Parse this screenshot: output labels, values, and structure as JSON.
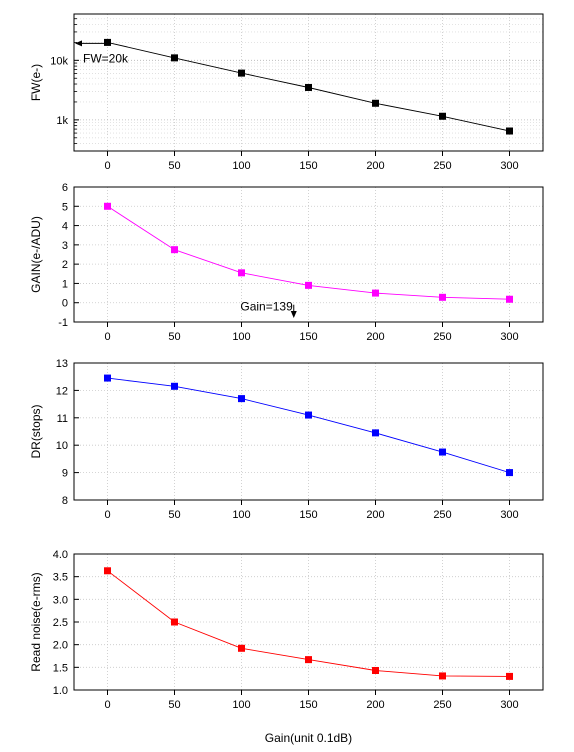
{
  "chart_data": [
    {
      "type": "line",
      "ylabel": "FW(e-)",
      "yscale": "log",
      "ylim": [
        300,
        60000
      ],
      "yticks": [
        {
          "v": 1000,
          "label": "1k"
        },
        {
          "v": 10000,
          "label": "10k"
        }
      ],
      "xlim": [
        -25,
        325
      ],
      "xticks": [
        0,
        50,
        100,
        150,
        200,
        250,
        300
      ],
      "series": [
        {
          "color": "#000000",
          "x": [
            0,
            50,
            100,
            150,
            200,
            250,
            300
          ],
          "y": [
            20000,
            11000,
            6100,
            3500,
            1900,
            1150,
            650
          ]
        }
      ],
      "annotation": {
        "text": "FW=20k",
        "arrow": "left",
        "at_x": 0,
        "at_y": 20000
      },
      "grid": true
    },
    {
      "type": "line",
      "ylabel": "GAIN(e-/ADU)",
      "ylim": [
        -1,
        6
      ],
      "yticks": [
        {
          "v": -1,
          "label": "-1"
        },
        {
          "v": 0,
          "label": "0"
        },
        {
          "v": 1,
          "label": "1"
        },
        {
          "v": 2,
          "label": "2"
        },
        {
          "v": 3,
          "label": "3"
        },
        {
          "v": 4,
          "label": "4"
        },
        {
          "v": 5,
          "label": "5"
        },
        {
          "v": 6,
          "label": "6"
        }
      ],
      "xlim": [
        -25,
        325
      ],
      "xticks": [
        0,
        50,
        100,
        150,
        200,
        250,
        300
      ],
      "series": [
        {
          "color": "#ff00ff",
          "x": [
            0,
            50,
            100,
            150,
            200,
            250,
            300
          ],
          "y": [
            5.0,
            2.75,
            1.55,
            0.9,
            0.5,
            0.28,
            0.18
          ]
        }
      ],
      "annotation": {
        "text": "Gain=139",
        "arrow": "down",
        "at_x": 139
      },
      "grid": true
    },
    {
      "type": "line",
      "ylabel": "DR(stops)",
      "ylim": [
        8,
        13
      ],
      "yticks": [
        {
          "v": 8,
          "label": "8"
        },
        {
          "v": 9,
          "label": "9"
        },
        {
          "v": 10,
          "label": "10"
        },
        {
          "v": 11,
          "label": "11"
        },
        {
          "v": 12,
          "label": "12"
        },
        {
          "v": 13,
          "label": "13"
        }
      ],
      "xlim": [
        -25,
        325
      ],
      "xticks": [
        0,
        50,
        100,
        150,
        200,
        250,
        300
      ],
      "series": [
        {
          "color": "#0000ff",
          "x": [
            0,
            50,
            100,
            150,
            200,
            250,
            300
          ],
          "y": [
            12.45,
            12.15,
            11.7,
            11.1,
            10.45,
            9.75,
            9.0
          ]
        }
      ],
      "grid": true
    },
    {
      "type": "line",
      "ylabel": "Read noise(e-rms)",
      "xlabel": "Gain(unit 0.1dB)",
      "ylim": [
        1.0,
        4.0
      ],
      "yticks": [
        {
          "v": 1.0,
          "label": "1.0"
        },
        {
          "v": 1.5,
          "label": "1.5"
        },
        {
          "v": 2.0,
          "label": "2.0"
        },
        {
          "v": 2.5,
          "label": "2.5"
        },
        {
          "v": 3.0,
          "label": "3.0"
        },
        {
          "v": 3.5,
          "label": "3.5"
        },
        {
          "v": 4.0,
          "label": "4.0"
        }
      ],
      "xlim": [
        -25,
        325
      ],
      "xticks": [
        0,
        50,
        100,
        150,
        200,
        250,
        300
      ],
      "series": [
        {
          "color": "#ff0000",
          "x": [
            0,
            50,
            100,
            150,
            200,
            250,
            300
          ],
          "y": [
            3.63,
            2.5,
            1.92,
            1.67,
            1.43,
            1.31,
            1.3
          ]
        }
      ],
      "grid": true
    }
  ]
}
